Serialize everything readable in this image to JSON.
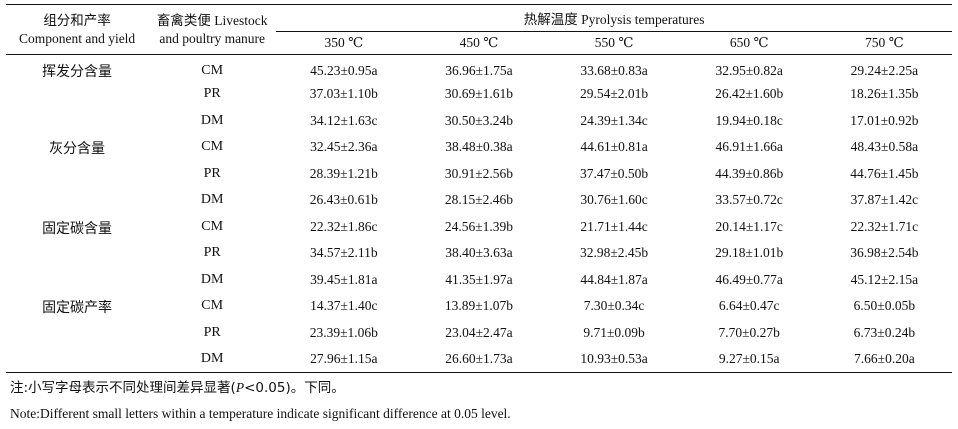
{
  "header": {
    "component_cn": "组分和产率",
    "component_en": "Component and yield",
    "manure_cn": "畜禽类便 Livestock",
    "manure_en": "and poultry manure",
    "pyrolysis": "热解温度 Pyrolysis temperatures",
    "temps": [
      "350 ℃",
      "450 ℃",
      "550 ℃",
      "650 ℃",
      "750 ℃"
    ]
  },
  "groups": [
    {
      "label": "挥发分含量",
      "rows": [
        {
          "manure": "CM",
          "values": [
            "45.23±0.95a",
            "36.96±1.75a",
            "33.68±0.83a",
            "32.95±0.82a",
            "29.24±2.25a"
          ]
        },
        {
          "manure": "PR",
          "values": [
            "37.03±1.10b",
            "30.69±1.61b",
            "29.54±2.01b",
            "26.42±1.60b",
            "18.26±1.35b"
          ]
        },
        {
          "manure": "DM",
          "values": [
            "34.12±1.63c",
            "30.50±3.24b",
            "24.39±1.34c",
            "19.94±0.18c",
            "17.01±0.92b"
          ]
        }
      ]
    },
    {
      "label": "灰分含量",
      "rows": [
        {
          "manure": "CM",
          "values": [
            "32.45±2.36a",
            "38.48±0.38a",
            "44.61±0.81a",
            "46.91±1.66a",
            "48.43±0.58a"
          ]
        },
        {
          "manure": "PR",
          "values": [
            "28.39±1.21b",
            "30.91±2.56b",
            "37.47±0.50b",
            "44.39±0.86b",
            "44.76±1.45b"
          ]
        },
        {
          "manure": "DM",
          "values": [
            "26.43±0.61b",
            "28.15±2.46b",
            "30.76±1.60c",
            "33.57±0.72c",
            "37.87±1.42c"
          ]
        }
      ]
    },
    {
      "label": "固定碳含量",
      "rows": [
        {
          "manure": "CM",
          "values": [
            "22.32±1.86c",
            "24.56±1.39b",
            "21.71±1.44c",
            "20.14±1.17c",
            "22.32±1.71c"
          ]
        },
        {
          "manure": "PR",
          "values": [
            "34.57±2.11b",
            "38.40±3.63a",
            "32.98±2.45b",
            "29.18±1.01b",
            "36.98±2.54b"
          ]
        },
        {
          "manure": "DM",
          "values": [
            "39.45±1.81a",
            "41.35±1.97a",
            "44.84±1.87a",
            "46.49±0.77a",
            "45.12±2.15a"
          ]
        }
      ]
    },
    {
      "label": "固定碳产率",
      "rows": [
        {
          "manure": "CM",
          "values": [
            "14.37±1.40c",
            "13.89±1.07b",
            "7.30±0.34c",
            "6.64±0.47c",
            "6.50±0.05b"
          ]
        },
        {
          "manure": "PR",
          "values": [
            "23.39±1.06b",
            "23.04±2.47a",
            "9.71±0.09b",
            "7.70±0.27b",
            "6.73±0.24b"
          ]
        },
        {
          "manure": "DM",
          "values": [
            "27.96±1.15a",
            "26.60±1.73a",
            "10.93±0.53a",
            "9.27±0.15a",
            "7.66±0.20a"
          ]
        }
      ]
    }
  ],
  "notes": {
    "cn_prefix": "注:小写字母表示不同处理间差异显著(",
    "cn_p": "P",
    "cn_suffix": "<0.05)。下同。",
    "en": "Note:Different small letters within a temperature indicate significant difference at 0.05 level."
  }
}
